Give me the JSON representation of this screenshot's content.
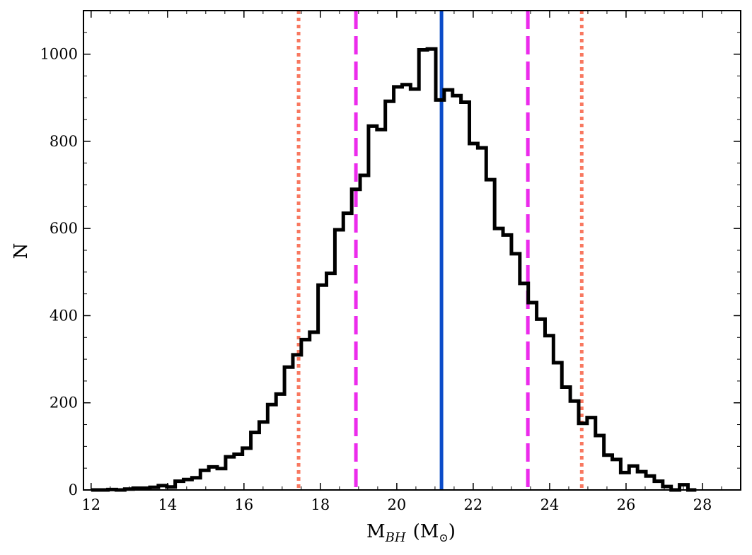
{
  "chart_data": {
    "type": "histogram",
    "xlabel_main": "M",
    "xlabel_sub": "BH",
    "xlabel_unit_open": "(M",
    "xlabel_unit_sub": "⊙",
    "xlabel_unit_close": ")",
    "ylabel": "N",
    "xlim": [
      11.8,
      29.0
    ],
    "ylim": [
      0,
      1100
    ],
    "x_ticks": [
      12,
      14,
      16,
      18,
      20,
      22,
      24,
      26,
      28
    ],
    "x_tick_labels": [
      "12",
      "14",
      "16",
      "18",
      "20",
      "22",
      "24",
      "26",
      "28"
    ],
    "y_ticks": [
      0,
      200,
      400,
      600,
      800,
      1000
    ],
    "y_tick_labels": [
      "0",
      "200",
      "400",
      "600",
      "800",
      "1000"
    ],
    "bin_start": 12.0,
    "bin_width": 0.22,
    "counts": [
      0,
      0,
      1,
      0,
      2,
      4,
      4,
      6,
      10,
      7,
      20,
      24,
      28,
      45,
      53,
      49,
      76,
      82,
      96,
      132,
      156,
      196,
      220,
      282,
      310,
      345,
      362,
      470,
      497,
      597,
      635,
      690,
      722,
      835,
      827,
      892,
      925,
      930,
      920,
      1010,
      1012,
      895,
      918,
      905,
      890,
      795,
      785,
      712,
      600,
      585,
      542,
      474,
      430,
      392,
      354,
      292,
      236,
      204,
      153,
      166,
      125,
      80,
      70,
      40,
      55,
      42,
      32,
      20,
      8,
      0,
      12,
      0
    ],
    "vlines": [
      {
        "name": "median",
        "x": 21.17,
        "color": "#0b4cc9",
        "style": "solid"
      },
      {
        "name": "1-sigma-lower",
        "x": 18.93,
        "color": "#ec2bec",
        "style": "dashed"
      },
      {
        "name": "1-sigma-upper",
        "x": 23.43,
        "color": "#ec2bec",
        "style": "dashed"
      },
      {
        "name": "2-sigma-lower",
        "x": 17.43,
        "color": "#f87860",
        "style": "dotted"
      },
      {
        "name": "2-sigma-upper",
        "x": 24.84,
        "color": "#f87860",
        "style": "dotted"
      }
    ],
    "histogram_color": "#000000",
    "grid": false,
    "legend": "none"
  }
}
